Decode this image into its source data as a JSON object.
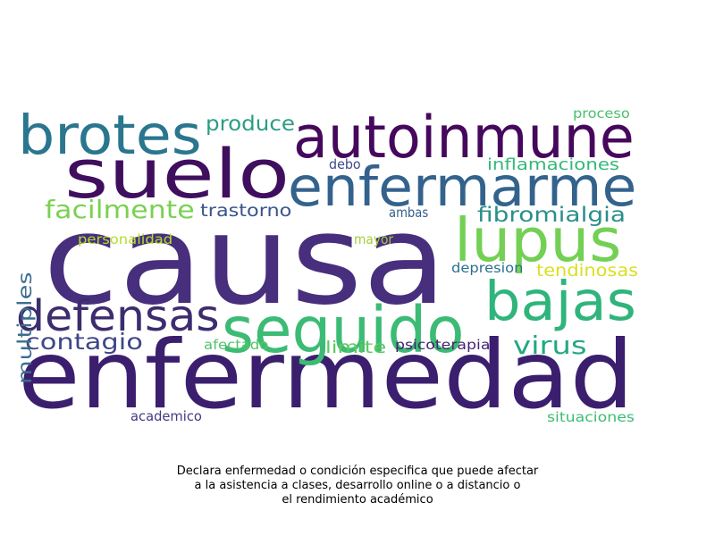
{
  "wordcloud": {
    "words": [
      {
        "text": "causa",
        "color": "#472f7d"
      },
      {
        "text": "enfermedad",
        "color": "#3b1f6e"
      },
      {
        "text": "suelo",
        "color": "#3f0f5e"
      },
      {
        "text": "autoinmune",
        "color": "#46085c"
      },
      {
        "text": "enfermarme",
        "color": "#33638d"
      },
      {
        "text": "brotes",
        "color": "#2a768e"
      },
      {
        "text": "lupus",
        "color": "#73d055"
      },
      {
        "text": "seguido",
        "color": "#3cbb75"
      },
      {
        "text": "bajas",
        "color": "#2fb47c"
      },
      {
        "text": "defensas",
        "color": "#3d2c6e"
      },
      {
        "text": "fibromialgia",
        "color": "#2a8f8a"
      },
      {
        "text": "contagio",
        "color": "#3f4788"
      },
      {
        "text": "virus",
        "color": "#22a884"
      },
      {
        "text": "facilmente",
        "color": "#7ad151"
      },
      {
        "text": "produce",
        "color": "#2a9d84"
      },
      {
        "text": "trastorno",
        "color": "#3a548c"
      },
      {
        "text": "inflamaciones",
        "color": "#35b779"
      },
      {
        "text": "multiples",
        "color": "#3b6d8f"
      },
      {
        "text": "debo",
        "color": "#3e4a89"
      },
      {
        "text": "ambas",
        "color": "#355e8d"
      },
      {
        "text": "personalidad",
        "color": "#b5de2b"
      },
      {
        "text": "mayor",
        "color": "#a3cd3a"
      },
      {
        "text": "tendinosas",
        "color": "#d9e022"
      },
      {
        "text": "depresion",
        "color": "#2d708e"
      },
      {
        "text": "afectado",
        "color": "#52c569"
      },
      {
        "text": "limite",
        "color": "#5ec962"
      },
      {
        "text": "psicoterapia",
        "color": "#482173"
      },
      {
        "text": "academico",
        "color": "#443983"
      },
      {
        "text": "situaciones",
        "color": "#3dbc74"
      },
      {
        "text": "proceso",
        "color": "#4ac16d"
      }
    ]
  },
  "caption": {
    "line1": "Declara enfermedad o condición especifica que puede afectar",
    "line2": "a la asistencia a clases, desarrollo online o a distancio o",
    "line3": "el rendimiento académico"
  }
}
